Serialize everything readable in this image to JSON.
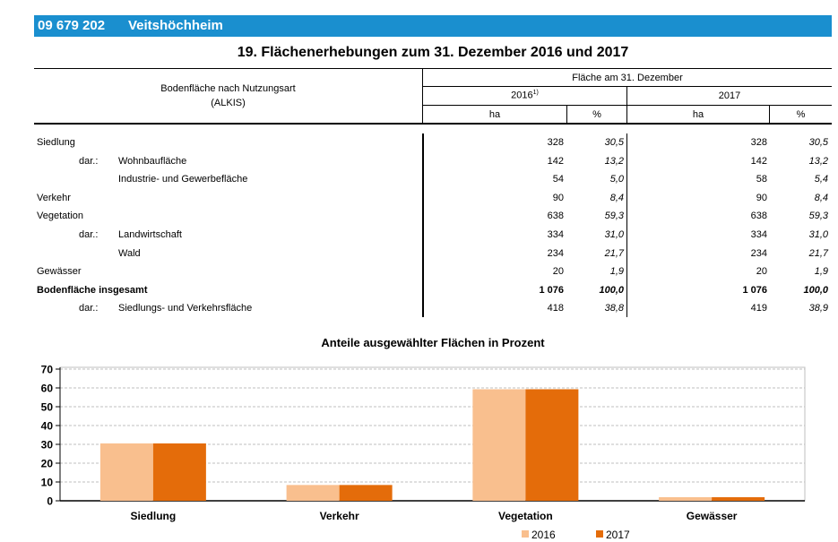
{
  "header": {
    "code": "09 679 202",
    "name": "Veitshöchheim"
  },
  "section_title": "19. Flächenerhebungen zum 31. Dezember 2016 und 2017",
  "table": {
    "row_header_line1": "Bodenfläche nach Nutzungsart",
    "row_header_line2": "(ALKIS)",
    "group_header": "Fläche am 31. Dezember",
    "year1": "2016",
    "year1_footnote": "1)",
    "year2": "2017",
    "unit_ha": "ha",
    "unit_pct": "%",
    "rows": [
      {
        "prefix": "",
        "label": "Siedlung",
        "ha2016": "328",
        "pct2016": "30,5",
        "ha2017": "328",
        "pct2017": "30,5",
        "bold": false
      },
      {
        "prefix": "dar.:",
        "label": "Wohnbaufläche",
        "ha2016": "142",
        "pct2016": "13,2",
        "ha2017": "142",
        "pct2017": "13,2",
        "bold": false
      },
      {
        "prefix": "",
        "label": "Industrie- und Gewerbefläche",
        "ha2016": "54",
        "pct2016": "5,0",
        "ha2017": "58",
        "pct2017": "5,4",
        "bold": false
      },
      {
        "prefix": "",
        "label": "Verkehr",
        "ha2016": "90",
        "pct2016": "8,4",
        "ha2017": "90",
        "pct2017": "8,4",
        "bold": false
      },
      {
        "prefix": "",
        "label": "Vegetation",
        "ha2016": "638",
        "pct2016": "59,3",
        "ha2017": "638",
        "pct2017": "59,3",
        "bold": false
      },
      {
        "prefix": "dar.:",
        "label": "Landwirtschaft",
        "ha2016": "334",
        "pct2016": "31,0",
        "ha2017": "334",
        "pct2017": "31,0",
        "bold": false
      },
      {
        "prefix": "",
        "label": "Wald",
        "ha2016": "234",
        "pct2016": "21,7",
        "ha2017": "234",
        "pct2017": "21,7",
        "bold": false
      },
      {
        "prefix": "",
        "label": "Gewässer",
        "ha2016": "20",
        "pct2016": "1,9",
        "ha2017": "20",
        "pct2017": "1,9",
        "bold": false
      },
      {
        "prefix": "",
        "label": "Bodenfläche insgesamt",
        "ha2016": "1 076",
        "pct2016": "100,0",
        "ha2017": "1 076",
        "pct2017": "100,0",
        "bold": true
      },
      {
        "prefix": "dar.:",
        "label": "Siedlungs- und Verkehrsfläche",
        "ha2016": "418",
        "pct2016": "38,8",
        "ha2017": "419",
        "pct2017": "38,9",
        "bold": false
      }
    ]
  },
  "chart_data": {
    "type": "bar",
    "title": "Anteile ausgewählter Flächen in Prozent",
    "categories": [
      "Siedlung",
      "Verkehr",
      "Vegetation",
      "Gewässer"
    ],
    "series": [
      {
        "name": "2016",
        "values": [
          30.5,
          8.4,
          59.3,
          1.9
        ],
        "color": "#f9bf8e"
      },
      {
        "name": "2017",
        "values": [
          30.5,
          8.4,
          59.3,
          1.9
        ],
        "color": "#e46c0a"
      }
    ],
    "ylim": [
      0,
      70
    ],
    "yticks": [
      "0",
      "10",
      "20",
      "30",
      "40",
      "50",
      "60",
      "70"
    ],
    "grid": true,
    "legend_position": "bottom-right"
  }
}
